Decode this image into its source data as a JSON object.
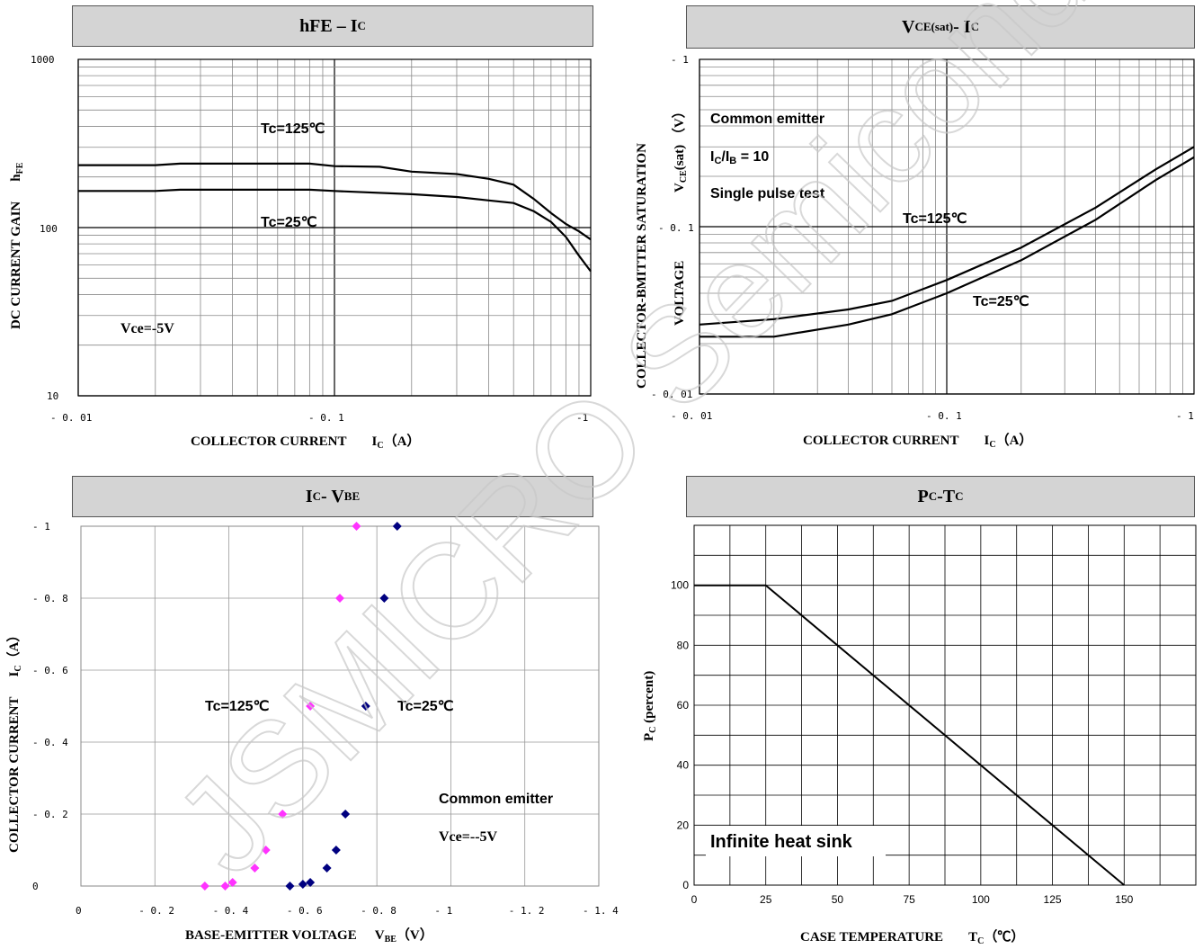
{
  "chart_data": [
    {
      "type": "line",
      "title_main": "hFE – I",
      "title_sub": "C",
      "xscale": "log",
      "yscale": "log",
      "xlim": [
        -0.01,
        -1
      ],
      "ylim": [
        10,
        1000
      ],
      "x_ticks": [
        "- 0. 01",
        "- 0. 1",
        "-1"
      ],
      "y_ticks": [
        "1000",
        "100",
        "10"
      ],
      "ylabel_main": "DC CURRENT GAIN",
      "ylabel_sym": "h",
      "ylabel_sub": "FE",
      "xlabel_main": "COLLECTOR CURRENT",
      "xlabel_sym": "I",
      "xlabel_sub": "C",
      "xlabel_unit": "（A）",
      "annotations": [
        "Tc=125℃",
        "Tc=25℃",
        "Vce=-5V"
      ],
      "series": [
        {
          "name": "Tc=125℃",
          "x": [
            -0.01,
            -0.02,
            -0.025,
            -0.05,
            -0.08,
            -0.1,
            -0.15,
            -0.2,
            -0.3,
            -0.4,
            -0.5,
            -0.6,
            -0.7,
            -0.8,
            -0.9,
            -1.0
          ],
          "y": [
            235,
            235,
            240,
            240,
            240,
            232,
            230,
            215,
            208,
            195,
            180,
            148,
            122,
            105,
            95,
            85
          ]
        },
        {
          "name": "Tc=25℃",
          "x": [
            -0.01,
            -0.02,
            -0.025,
            -0.05,
            -0.08,
            -0.1,
            -0.2,
            -0.3,
            -0.4,
            -0.5,
            -0.6,
            -0.7,
            -0.8,
            -0.9,
            -1.0
          ],
          "y": [
            165,
            165,
            168,
            168,
            168,
            165,
            158,
            152,
            145,
            140,
            125,
            108,
            88,
            68,
            55
          ]
        }
      ]
    },
    {
      "type": "line",
      "title_main": "V",
      "title_sub": "CE(sat)",
      "title_tail": "- I",
      "title_tail_sub": "C",
      "xscale": "log",
      "yscale": "log",
      "xlim": [
        -0.01,
        -1
      ],
      "ylim": [
        -0.01,
        -1
      ],
      "x_ticks": [
        "- 0. 01",
        "- 0. 1",
        "- 1"
      ],
      "y_ticks": [
        "- 1",
        "- 0. 1",
        "- 0. 01"
      ],
      "ylabel_line1": "COLLECTOR-BMITTER SATURATION",
      "ylabel_line2_sym": "V",
      "ylabel_line2_sub": "CE",
      "ylabel_line2_tail": "(sat)  （V）",
      "ylabel_line3": "VOLTAGE",
      "xlabel_main": "COLLECTOR CURRENT",
      "xlabel_sym": "I",
      "xlabel_sub": "C",
      "xlabel_unit": "（A）",
      "annotations": [
        "Common emitter",
        "I",
        "C",
        "/I",
        "B",
        " = 10",
        "Single pulse test",
        "Tc=125℃",
        "Tc=25℃"
      ],
      "series": [
        {
          "name": "Tc=125℃",
          "x": [
            -0.01,
            -0.02,
            -0.04,
            -0.06,
            -0.1,
            -0.2,
            -0.4,
            -0.7,
            -1.0
          ],
          "y": [
            -0.026,
            -0.028,
            -0.032,
            -0.036,
            -0.048,
            -0.075,
            -0.13,
            -0.22,
            -0.3
          ]
        },
        {
          "name": "Tc=25℃",
          "x": [
            -0.01,
            -0.02,
            -0.04,
            -0.06,
            -0.1,
            -0.2,
            -0.4,
            -0.7,
            -1.0
          ],
          "y": [
            -0.022,
            -0.022,
            -0.026,
            -0.03,
            -0.04,
            -0.063,
            -0.11,
            -0.19,
            -0.26
          ]
        }
      ]
    },
    {
      "type": "scatter",
      "title_main": "I",
      "title_sub": "C",
      "title_tail": "- V",
      "title_tail_sub": "BE",
      "xlim": [
        0,
        -1.4
      ],
      "ylim": [
        0,
        -1
      ],
      "x_ticks": [
        "0",
        "- 0. 2",
        "- 0. 4",
        "- 0. 6",
        "- 0. 8",
        "- 1",
        "- 1. 2",
        "- 1. 4"
      ],
      "y_ticks": [
        "- 1",
        "- 0. 8",
        "- 0. 6",
        "- 0. 4",
        "- 0. 2",
        "0"
      ],
      "ylabel_main": "COLLECTOR CURRENT",
      "ylabel_sym": "I",
      "ylabel_sub": "C",
      "ylabel_unit": "（A）",
      "xlabel_main": "BASE-EMITTER VOLTAGE",
      "xlabel_sym": "V",
      "xlabel_sub": "BE",
      "xlabel_unit": "（V）",
      "annotations": [
        "Tc=125℃",
        "Tc=25℃",
        "Common emitter",
        "Vce=--5V"
      ],
      "series": [
        {
          "name": "Tc=125℃",
          "color": "#ff33ff",
          "x": [
            -0.335,
            -0.39,
            -0.41,
            -0.47,
            -0.5,
            -0.545,
            -0.62,
            -0.7,
            -0.745
          ],
          "y": [
            0,
            0,
            -0.01,
            -0.05,
            -0.1,
            -0.2,
            -0.5,
            -0.8,
            -1.0
          ]
        },
        {
          "name": "Tc=25℃",
          "color": "#000080",
          "x": [
            -0.565,
            -0.6,
            -0.62,
            -0.665,
            -0.69,
            -0.715,
            -0.77,
            -0.82,
            -0.855
          ],
          "y": [
            0,
            0.005,
            -0.01,
            -0.05,
            -0.1,
            -0.2,
            -0.5,
            -0.8,
            -1.0
          ]
        }
      ]
    },
    {
      "type": "line",
      "title_main": "P",
      "title_sub": "C",
      "title_tail": "-T",
      "title_tail_sub": "C",
      "xlim": [
        0,
        175
      ],
      "ylim": [
        0,
        120
      ],
      "x_ticks": [
        "0",
        "25",
        "50",
        "75",
        "100",
        "125",
        "150"
      ],
      "y_ticks": [
        "100",
        "80",
        "60",
        "40",
        "20",
        "0"
      ],
      "ylabel_sym": "P",
      "ylabel_sub": "C",
      "ylabel_tail": " (percent)",
      "xlabel_main": "CASE TEMPERATURE",
      "xlabel_sym": "T",
      "xlabel_sub": "C",
      "xlabel_unit": "（℃）",
      "annotations": [
        "Infinite heat sink"
      ],
      "series": [
        {
          "x": [
            0,
            25,
            150
          ],
          "y": [
            100,
            100,
            0
          ]
        }
      ]
    }
  ],
  "watermark": "JSMICRO Semiconductor"
}
